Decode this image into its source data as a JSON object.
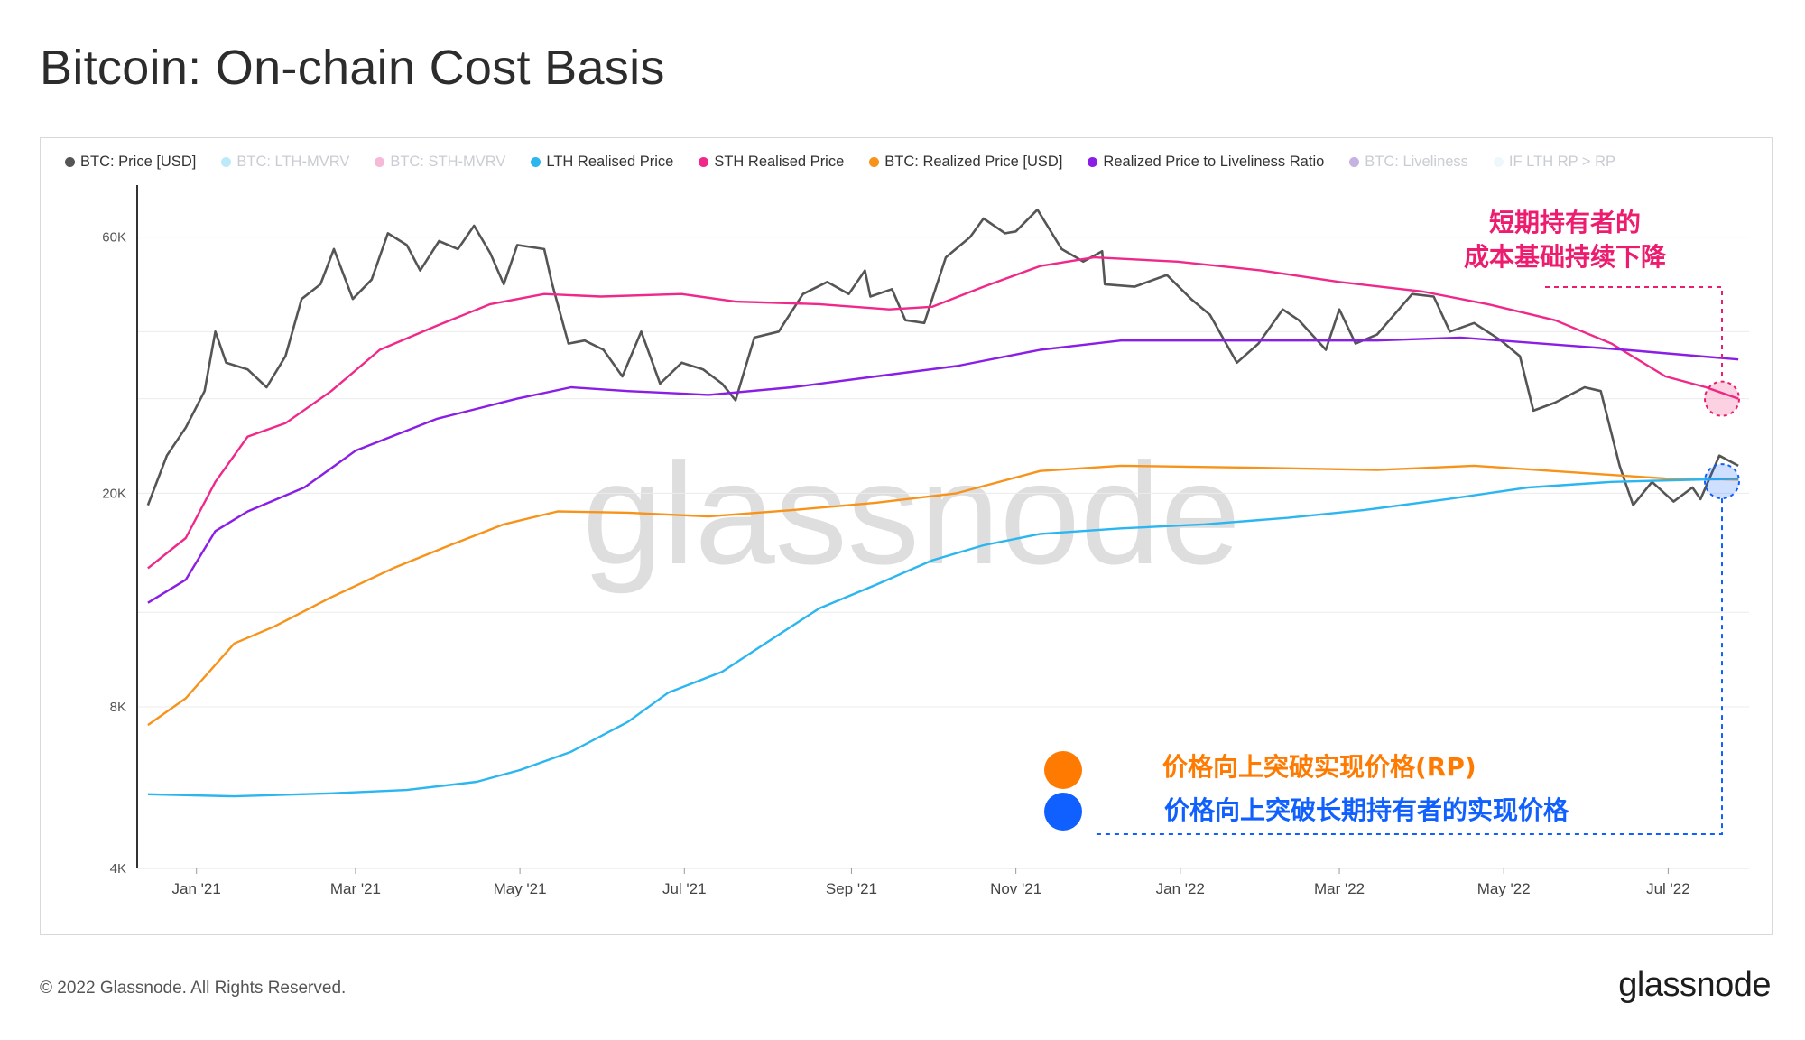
{
  "page": {
    "title": "Bitcoin: On-chain Cost Basis",
    "footer_copyright": "© 2022 Glassnode. All Rights Reserved.",
    "footer_logo": "glassnode",
    "watermark": "glassnode"
  },
  "legend": [
    {
      "label": "BTC: Price [USD]",
      "color": "#555555",
      "active": true
    },
    {
      "label": "BTC: LTH-MVRV",
      "color": "#3ec3f2",
      "active": false
    },
    {
      "label": "BTC: STH-MVRV",
      "color": "#e8368f",
      "active": false
    },
    {
      "label": "LTH Realised Price",
      "color": "#2bb6f0",
      "active": true
    },
    {
      "label": "STH Realised Price",
      "color": "#f0288a",
      "active": true
    },
    {
      "label": "BTC: Realized Price [USD]",
      "color": "#f7931a",
      "active": true
    },
    {
      "label": "Realized Price to Liveliness Ratio",
      "color": "#8a1de6",
      "active": true
    },
    {
      "label": "BTC: Liveliness",
      "color": "#5b1fa8",
      "active": false
    },
    {
      "label": "IF LTH RP > RP",
      "color": "#cde9f6",
      "active": false
    }
  ],
  "annotations": {
    "sth_line1": "短期持有者的",
    "sth_line2": "成本基础持续下降",
    "rp_break": "价格向上突破实现价格(RP)",
    "lth_break": "价格向上突破长期持有者的实现价格",
    "rp_color": "#ff7a00",
    "lth_color": "#1060ff",
    "sth_color": "#ee1c6f"
  },
  "chart_data": {
    "type": "line",
    "title": "Bitcoin: On-chain Cost Basis",
    "y_scale": "log",
    "ylim": [
      4000,
      75000
    ],
    "y_ticks": [
      {
        "value": 4000,
        "label": "4K"
      },
      {
        "value": 8000,
        "label": "8K"
      },
      {
        "value": 20000,
        "label": "20K"
      },
      {
        "value": 60000,
        "label": "60K"
      }
    ],
    "y_grid_values": [
      4000,
      8000,
      12000,
      20000,
      30000,
      40000,
      60000
    ],
    "xlim": [
      "2020-12-10",
      "2022-07-31"
    ],
    "x_ticks": [
      {
        "date": "2021-01-01",
        "label": "Jan '21"
      },
      {
        "date": "2021-03-01",
        "label": "Mar '21"
      },
      {
        "date": "2021-05-01",
        "label": "May '21"
      },
      {
        "date": "2021-07-01",
        "label": "Jul '21"
      },
      {
        "date": "2021-09-01",
        "label": "Sep '21"
      },
      {
        "date": "2021-11-01",
        "label": "Nov '21"
      },
      {
        "date": "2022-01-01",
        "label": "Jan '22"
      },
      {
        "date": "2022-03-01",
        "label": "Mar '22"
      },
      {
        "date": "2022-05-01",
        "label": "May '22"
      },
      {
        "date": "2022-07-01",
        "label": "Jul '22"
      }
    ],
    "series": [
      {
        "name": "BTC: Price [USD]",
        "color": "#555555",
        "points": [
          [
            "2020-12-14",
            19000
          ],
          [
            "2020-12-21",
            23500
          ],
          [
            "2020-12-28",
            26500
          ],
          [
            "2021-01-04",
            31000
          ],
          [
            "2021-01-08",
            40000
          ],
          [
            "2021-01-12",
            35000
          ],
          [
            "2021-01-20",
            34000
          ],
          [
            "2021-01-27",
            31500
          ],
          [
            "2021-02-03",
            36000
          ],
          [
            "2021-02-09",
            46000
          ],
          [
            "2021-02-16",
            49000
          ],
          [
            "2021-02-21",
            57000
          ],
          [
            "2021-02-28",
            46000
          ],
          [
            "2021-03-07",
            50000
          ],
          [
            "2021-03-13",
            61000
          ],
          [
            "2021-03-20",
            58000
          ],
          [
            "2021-03-25",
            52000
          ],
          [
            "2021-04-01",
            59000
          ],
          [
            "2021-04-08",
            57000
          ],
          [
            "2021-04-14",
            63000
          ],
          [
            "2021-04-20",
            56000
          ],
          [
            "2021-04-25",
            49000
          ],
          [
            "2021-04-30",
            58000
          ],
          [
            "2021-05-10",
            57000
          ],
          [
            "2021-05-13",
            49000
          ],
          [
            "2021-05-19",
            38000
          ],
          [
            "2021-05-25",
            38500
          ],
          [
            "2021-06-01",
            37000
          ],
          [
            "2021-06-08",
            33000
          ],
          [
            "2021-06-15",
            40000
          ],
          [
            "2021-06-22",
            32000
          ],
          [
            "2021-06-30",
            35000
          ],
          [
            "2021-07-08",
            34000
          ],
          [
            "2021-07-15",
            32000
          ],
          [
            "2021-07-20",
            29800
          ],
          [
            "2021-07-27",
            39000
          ],
          [
            "2021-08-05",
            40000
          ],
          [
            "2021-08-14",
            47000
          ],
          [
            "2021-08-23",
            49500
          ],
          [
            "2021-08-31",
            47000
          ],
          [
            "2021-09-06",
            52000
          ],
          [
            "2021-09-08",
            46500
          ],
          [
            "2021-09-16",
            48000
          ],
          [
            "2021-09-21",
            42000
          ],
          [
            "2021-09-28",
            41500
          ],
          [
            "2021-10-06",
            55000
          ],
          [
            "2021-10-15",
            60000
          ],
          [
            "2021-10-20",
            65000
          ],
          [
            "2021-10-28",
            61000
          ],
          [
            "2021-11-01",
            61500
          ],
          [
            "2021-11-09",
            67500
          ],
          [
            "2021-11-18",
            57000
          ],
          [
            "2021-11-26",
            54000
          ],
          [
            "2021-12-03",
            56500
          ],
          [
            "2021-12-04",
            49000
          ],
          [
            "2021-12-15",
            48500
          ],
          [
            "2021-12-27",
            51000
          ],
          [
            "2022-01-05",
            46000
          ],
          [
            "2022-01-12",
            43000
          ],
          [
            "2022-01-22",
            35000
          ],
          [
            "2022-01-30",
            38000
          ],
          [
            "2022-02-08",
            44000
          ],
          [
            "2022-02-14",
            42000
          ],
          [
            "2022-02-24",
            37000
          ],
          [
            "2022-03-01",
            44000
          ],
          [
            "2022-03-07",
            38000
          ],
          [
            "2022-03-15",
            39500
          ],
          [
            "2022-03-28",
            47000
          ],
          [
            "2022-04-05",
            46500
          ],
          [
            "2022-04-11",
            40000
          ],
          [
            "2022-04-20",
            41500
          ],
          [
            "2022-04-30",
            38500
          ],
          [
            "2022-05-07",
            36000
          ],
          [
            "2022-05-12",
            28500
          ],
          [
            "2022-05-20",
            29500
          ],
          [
            "2022-05-31",
            31500
          ],
          [
            "2022-06-06",
            31000
          ],
          [
            "2022-06-13",
            22500
          ],
          [
            "2022-06-18",
            19000
          ],
          [
            "2022-06-25",
            21000
          ],
          [
            "2022-07-03",
            19300
          ],
          [
            "2022-07-10",
            20500
          ],
          [
            "2022-07-13",
            19500
          ],
          [
            "2022-07-20",
            23500
          ],
          [
            "2022-07-27",
            22500
          ]
        ]
      },
      {
        "name": "STH Realised Price",
        "color": "#f0288a",
        "points": [
          [
            "2020-12-14",
            14500
          ],
          [
            "2020-12-28",
            16500
          ],
          [
            "2021-01-08",
            21000
          ],
          [
            "2021-01-20",
            25500
          ],
          [
            "2021-02-03",
            27000
          ],
          [
            "2021-02-20",
            31000
          ],
          [
            "2021-03-10",
            37000
          ],
          [
            "2021-03-31",
            41000
          ],
          [
            "2021-04-20",
            45000
          ],
          [
            "2021-05-10",
            47000
          ],
          [
            "2021-05-31",
            46500
          ],
          [
            "2021-06-30",
            47000
          ],
          [
            "2021-07-20",
            45500
          ],
          [
            "2021-08-20",
            45000
          ],
          [
            "2021-09-15",
            44000
          ],
          [
            "2021-10-01",
            44500
          ],
          [
            "2021-10-20",
            48500
          ],
          [
            "2021-11-10",
            53000
          ],
          [
            "2021-11-30",
            55000
          ],
          [
            "2021-12-31",
            54000
          ],
          [
            "2022-01-31",
            52000
          ],
          [
            "2022-03-01",
            49500
          ],
          [
            "2022-04-01",
            47500
          ],
          [
            "2022-04-25",
            45000
          ],
          [
            "2022-05-20",
            42000
          ],
          [
            "2022-06-10",
            38000
          ],
          [
            "2022-06-30",
            33000
          ],
          [
            "2022-07-15",
            31500
          ],
          [
            "2022-07-27",
            30000
          ]
        ]
      },
      {
        "name": "Realized Price to Liveliness Ratio",
        "color": "#8a1de6",
        "points": [
          [
            "2020-12-14",
            12500
          ],
          [
            "2020-12-28",
            13800
          ],
          [
            "2021-01-08",
            17000
          ],
          [
            "2021-01-20",
            18500
          ],
          [
            "2021-02-10",
            20500
          ],
          [
            "2021-03-01",
            24000
          ],
          [
            "2021-03-31",
            27500
          ],
          [
            "2021-04-30",
            30000
          ],
          [
            "2021-05-20",
            31500
          ],
          [
            "2021-06-10",
            31000
          ],
          [
            "2021-07-10",
            30500
          ],
          [
            "2021-08-10",
            31500
          ],
          [
            "2021-09-10",
            33000
          ],
          [
            "2021-10-10",
            34500
          ],
          [
            "2021-11-10",
            37000
          ],
          [
            "2021-12-10",
            38500
          ],
          [
            "2022-01-31",
            38500
          ],
          [
            "2022-03-15",
            38500
          ],
          [
            "2022-04-15",
            39000
          ],
          [
            "2022-05-15",
            38000
          ],
          [
            "2022-06-15",
            37000
          ],
          [
            "2022-07-27",
            35500
          ]
        ]
      },
      {
        "name": "BTC: Realized Price [USD]",
        "color": "#f7931a",
        "points": [
          [
            "2020-12-14",
            7400
          ],
          [
            "2020-12-28",
            8300
          ],
          [
            "2021-01-15",
            10500
          ],
          [
            "2021-01-30",
            11300
          ],
          [
            "2021-02-20",
            12800
          ],
          [
            "2021-03-15",
            14500
          ],
          [
            "2021-04-05",
            16000
          ],
          [
            "2021-04-25",
            17500
          ],
          [
            "2021-05-15",
            18500
          ],
          [
            "2021-06-10",
            18400
          ],
          [
            "2021-07-10",
            18100
          ],
          [
            "2021-08-10",
            18600
          ],
          [
            "2021-09-10",
            19200
          ],
          [
            "2021-10-10",
            20000
          ],
          [
            "2021-11-10",
            22000
          ],
          [
            "2021-12-10",
            22500
          ],
          [
            "2022-01-31",
            22300
          ],
          [
            "2022-03-15",
            22100
          ],
          [
            "2022-04-20",
            22500
          ],
          [
            "2022-05-31",
            21800
          ],
          [
            "2022-06-30",
            21300
          ],
          [
            "2022-07-27",
            21200
          ]
        ]
      },
      {
        "name": "LTH Realised Price",
        "color": "#2bb6f0",
        "points": [
          [
            "2020-12-14",
            5500
          ],
          [
            "2021-01-15",
            5450
          ],
          [
            "2021-02-20",
            5520
          ],
          [
            "2021-03-20",
            5600
          ],
          [
            "2021-04-15",
            5800
          ],
          [
            "2021-05-01",
            6100
          ],
          [
            "2021-05-20",
            6600
          ],
          [
            "2021-06-10",
            7500
          ],
          [
            "2021-06-25",
            8500
          ],
          [
            "2021-07-15",
            9300
          ],
          [
            "2021-07-31",
            10500
          ],
          [
            "2021-08-20",
            12200
          ],
          [
            "2021-09-10",
            13500
          ],
          [
            "2021-10-01",
            15000
          ],
          [
            "2021-10-20",
            16000
          ],
          [
            "2021-11-10",
            16800
          ],
          [
            "2021-12-10",
            17200
          ],
          [
            "2022-01-10",
            17500
          ],
          [
            "2022-02-10",
            18000
          ],
          [
            "2022-03-10",
            18600
          ],
          [
            "2022-04-10",
            19500
          ],
          [
            "2022-05-10",
            20500
          ],
          [
            "2022-06-10",
            21000
          ],
          [
            "2022-07-27",
            21300
          ]
        ]
      }
    ]
  }
}
